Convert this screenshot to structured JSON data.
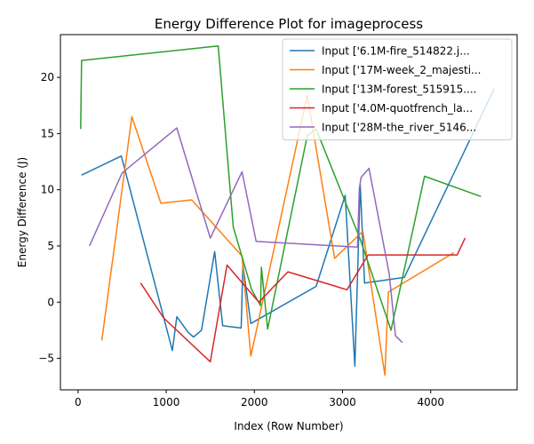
{
  "chart_data": {
    "type": "line",
    "title": "Energy Difference Plot for imageprocess",
    "xlabel": "Index (Row Number)",
    "ylabel": "Energy Difference (J)",
    "xlim": [
      -200,
      4980
    ],
    "ylim": [
      -7.8,
      23.8
    ],
    "xticks": [
      0,
      1000,
      2000,
      3000,
      4000
    ],
    "yticks": [
      -5,
      0,
      5,
      10,
      15,
      20
    ],
    "legend_position": "top-right",
    "grid": false,
    "series": [
      {
        "name": "Input ['6.1M-fire_514822.j...",
        "color": "#1f77b4",
        "points": [
          [
            40,
            11.3
          ],
          [
            490,
            13.0
          ],
          [
            1070,
            -4.3
          ],
          [
            1120,
            -1.3
          ],
          [
            1250,
            -2.7
          ],
          [
            1310,
            -3.1
          ],
          [
            1400,
            -2.5
          ],
          [
            1550,
            4.5
          ],
          [
            1640,
            -2.1
          ],
          [
            1850,
            -2.3
          ],
          [
            1870,
            3.3
          ],
          [
            1960,
            -1.9
          ],
          [
            2700,
            1.4
          ],
          [
            3030,
            9.5
          ],
          [
            3140,
            -5.7
          ],
          [
            3200,
            10.5
          ],
          [
            3250,
            1.7
          ],
          [
            3700,
            2.2
          ],
          [
            4720,
            19.0
          ]
        ]
      },
      {
        "name": "Input ['17M-week_2_majesti...",
        "color": "#ff7f0e",
        "points": [
          [
            270,
            -3.4
          ],
          [
            610,
            16.5
          ],
          [
            940,
            8.8
          ],
          [
            1290,
            9.1
          ],
          [
            1860,
            4.1
          ],
          [
            1960,
            -4.8
          ],
          [
            2600,
            18.4
          ],
          [
            2910,
            3.9
          ],
          [
            3230,
            6.3
          ],
          [
            3480,
            -6.5
          ],
          [
            3520,
            0.9
          ],
          [
            4260,
            4.4
          ]
        ]
      },
      {
        "name": "Input ['13M-forest_515915....",
        "color": "#2ca02c",
        "points": [
          [
            30,
            15.4
          ],
          [
            40,
            21.5
          ],
          [
            1590,
            22.8
          ],
          [
            1760,
            6.7
          ],
          [
            1970,
            1.1
          ],
          [
            2070,
            -0.3
          ],
          [
            2080,
            3.1
          ],
          [
            2150,
            -2.4
          ],
          [
            2600,
            14.8
          ],
          [
            2700,
            15.4
          ],
          [
            3200,
            5.6
          ],
          [
            3550,
            -2.5
          ],
          [
            3930,
            11.2
          ],
          [
            4570,
            9.4
          ]
        ]
      },
      {
        "name": "Input ['4.0M-quotfrench_la...",
        "color": "#d62728",
        "points": [
          [
            710,
            1.7
          ],
          [
            970,
            -1.4
          ],
          [
            1500,
            -5.3
          ],
          [
            1690,
            3.3
          ],
          [
            2050,
            0.0
          ],
          [
            2380,
            2.7
          ],
          [
            3050,
            1.1
          ],
          [
            3290,
            4.2
          ],
          [
            4300,
            4.2
          ],
          [
            4390,
            5.7
          ]
        ]
      },
      {
        "name": "Input ['28M-the_river_5146...",
        "color": "#9467bd",
        "points": [
          [
            130,
            5.0
          ],
          [
            500,
            11.5
          ],
          [
            1120,
            15.5
          ],
          [
            1500,
            5.7
          ],
          [
            1860,
            11.6
          ],
          [
            2020,
            5.4
          ],
          [
            3170,
            4.9
          ],
          [
            3190,
            10.1
          ],
          [
            3210,
            11.1
          ],
          [
            3300,
            11.9
          ],
          [
            3530,
            2.5
          ],
          [
            3600,
            -3.0
          ],
          [
            3680,
            -3.6
          ]
        ]
      }
    ]
  }
}
